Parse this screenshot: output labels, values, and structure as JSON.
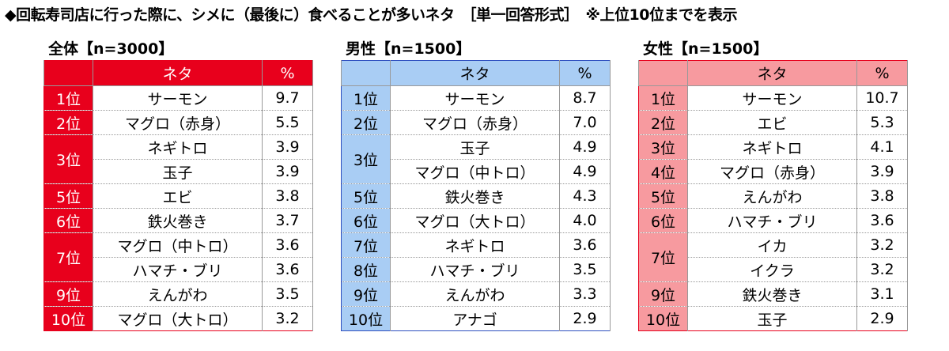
{
  "title": "◆回転寿司店に行った際に、シメに（最後に）食べることが多いネタ　［単一回答形式］　※上位10位までを表示",
  "headers": {
    "neta": "ネタ",
    "pct": "%"
  },
  "panels": [
    {
      "title": "全体【n=3000】",
      "colors": {
        "accent": "#e8001c",
        "rank_text": "#ffffff",
        "header_text": "#ffffff",
        "border": "#e8001c"
      },
      "rows": [
        {
          "rank": "1位",
          "items": [
            {
              "neta": "サーモン",
              "pct": "9.7"
            }
          ]
        },
        {
          "rank": "2位",
          "items": [
            {
              "neta": "マグロ（赤身）",
              "pct": "5.5"
            }
          ]
        },
        {
          "rank": "3位",
          "items": [
            {
              "neta": "ネギトロ",
              "pct": "3.9"
            },
            {
              "neta": "玉子",
              "pct": "3.9"
            }
          ]
        },
        {
          "rank": "5位",
          "items": [
            {
              "neta": "エビ",
              "pct": "3.8"
            }
          ]
        },
        {
          "rank": "6位",
          "items": [
            {
              "neta": "鉄火巻き",
              "pct": "3.7"
            }
          ]
        },
        {
          "rank": "7位",
          "items": [
            {
              "neta": "マグロ（中トロ）",
              "pct": "3.6"
            },
            {
              "neta": "ハマチ・ブリ",
              "pct": "3.6"
            }
          ]
        },
        {
          "rank": "9位",
          "items": [
            {
              "neta": "えんがわ",
              "pct": "3.5"
            }
          ]
        },
        {
          "rank": "10位",
          "items": [
            {
              "neta": "マグロ（大トロ）",
              "pct": "3.2"
            }
          ]
        }
      ]
    },
    {
      "title": "男性【n=1500】",
      "colors": {
        "accent": "#a9cdf4",
        "rank_text": "#000000",
        "header_text": "#000000",
        "border": "#2e4fbf"
      },
      "rows": [
        {
          "rank": "1位",
          "items": [
            {
              "neta": "サーモン",
              "pct": "8.7"
            }
          ]
        },
        {
          "rank": "2位",
          "items": [
            {
              "neta": "マグロ（赤身）",
              "pct": "7.0"
            }
          ]
        },
        {
          "rank": "3位",
          "items": [
            {
              "neta": "玉子",
              "pct": "4.9"
            },
            {
              "neta": "マグロ（中トロ）",
              "pct": "4.9"
            }
          ]
        },
        {
          "rank": "5位",
          "items": [
            {
              "neta": "鉄火巻き",
              "pct": "4.3"
            }
          ]
        },
        {
          "rank": "6位",
          "items": [
            {
              "neta": "マグロ（大トロ）",
              "pct": "4.0"
            }
          ]
        },
        {
          "rank": "7位",
          "items": [
            {
              "neta": "ネギトロ",
              "pct": "3.6"
            }
          ]
        },
        {
          "rank": "8位",
          "items": [
            {
              "neta": "ハマチ・ブリ",
              "pct": "3.5"
            }
          ]
        },
        {
          "rank": "9位",
          "items": [
            {
              "neta": "えんがわ",
              "pct": "3.3"
            }
          ]
        },
        {
          "rank": "10位",
          "items": [
            {
              "neta": "アナゴ",
              "pct": "2.9"
            }
          ]
        }
      ]
    },
    {
      "title": "女性【n=1500】",
      "colors": {
        "accent": "#f79a9f",
        "rank_text": "#000000",
        "header_text": "#000000",
        "border": "#e8001c"
      },
      "rows": [
        {
          "rank": "1位",
          "items": [
            {
              "neta": "サーモン",
              "pct": "10.7"
            }
          ]
        },
        {
          "rank": "2位",
          "items": [
            {
              "neta": "エビ",
              "pct": "5.3"
            }
          ]
        },
        {
          "rank": "3位",
          "items": [
            {
              "neta": "ネギトロ",
              "pct": "4.1"
            }
          ]
        },
        {
          "rank": "4位",
          "items": [
            {
              "neta": "マグロ（赤身）",
              "pct": "3.9"
            }
          ]
        },
        {
          "rank": "5位",
          "items": [
            {
              "neta": "えんがわ",
              "pct": "3.8"
            }
          ]
        },
        {
          "rank": "6位",
          "items": [
            {
              "neta": "ハマチ・ブリ",
              "pct": "3.6"
            }
          ]
        },
        {
          "rank": "7位",
          "items": [
            {
              "neta": "イカ",
              "pct": "3.2"
            },
            {
              "neta": "イクラ",
              "pct": "3.2"
            }
          ]
        },
        {
          "rank": "9位",
          "items": [
            {
              "neta": "鉄火巻き",
              "pct": "3.1"
            }
          ]
        },
        {
          "rank": "10位",
          "items": [
            {
              "neta": "玉子",
              "pct": "2.9"
            }
          ]
        }
      ]
    }
  ]
}
